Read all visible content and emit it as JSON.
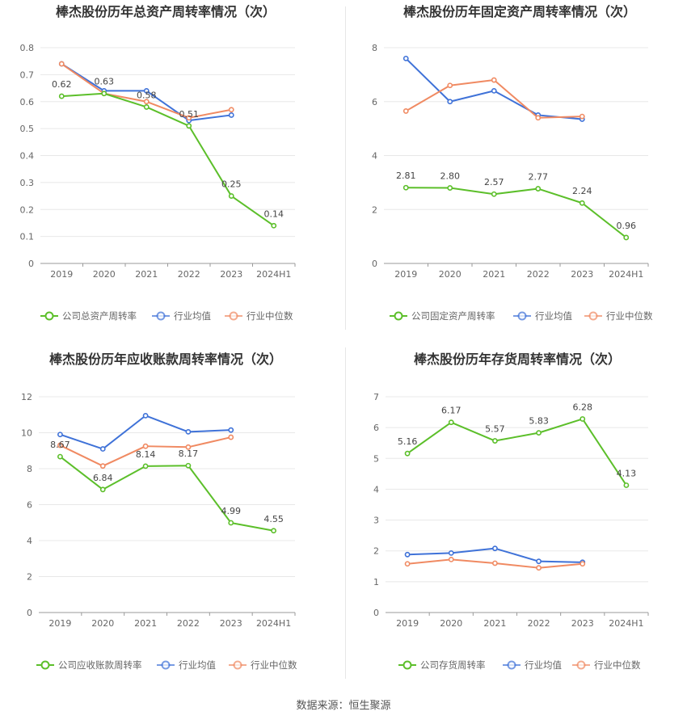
{
  "colors": {
    "company": "#5cbf2a",
    "avg": "#3f72d8",
    "median": "#f08a62",
    "grid": "#e8e8e8",
    "axis": "#9a9a9a",
    "title": "#333333",
    "label": "#666666"
  },
  "legend": {
    "avg": "行业均值",
    "median": "行业中位数"
  },
  "source": "数据来源：恒生聚源",
  "chart_data": [
    {
      "type": "line",
      "title": "棒杰股份历年总资产周转率情况（次）",
      "categories": [
        "2019",
        "2020",
        "2021",
        "2022",
        "2023",
        "2024H1"
      ],
      "yticks": [
        "0",
        "0.1",
        "0.2",
        "0.3",
        "0.4",
        "0.5",
        "0.6",
        "0.7",
        "0.8"
      ],
      "ylim": [
        0,
        0.8
      ],
      "grid": true,
      "legend_position": "bottom",
      "series": [
        {
          "name": "公司总资产周转率",
          "key": "company",
          "values": [
            0.62,
            0.63,
            0.58,
            0.51,
            0.25,
            0.14
          ],
          "labels": [
            "0.62",
            "0.63",
            "0.58",
            "0.51",
            "0.25",
            "0.14"
          ]
        },
        {
          "name": "行业均值",
          "key": "avg",
          "values": [
            0.74,
            0.64,
            0.64,
            0.53,
            0.55,
            null
          ]
        },
        {
          "name": "行业中位数",
          "key": "median",
          "values": [
            0.74,
            0.63,
            0.6,
            0.54,
            0.57,
            null
          ]
        }
      ]
    },
    {
      "type": "line",
      "title": "棒杰股份历年固定资产周转率情况（次）",
      "categories": [
        "2019",
        "2020",
        "2021",
        "2022",
        "2023",
        "2024H1"
      ],
      "yticks": [
        "0",
        "2",
        "4",
        "6",
        "8"
      ],
      "ylim": [
        0,
        8
      ],
      "grid": true,
      "legend_position": "bottom",
      "series": [
        {
          "name": "公司固定资产周转率",
          "key": "company",
          "values": [
            2.81,
            2.8,
            2.57,
            2.77,
            2.24,
            0.96
          ],
          "labels": [
            "2.81",
            "2.80",
            "2.57",
            "2.77",
            "2.24",
            "0.96"
          ]
        },
        {
          "name": "行业均值",
          "key": "avg",
          "values": [
            7.6,
            6.0,
            6.4,
            5.5,
            5.35,
            null
          ]
        },
        {
          "name": "行业中位数",
          "key": "median",
          "values": [
            5.65,
            6.6,
            6.8,
            5.4,
            5.45,
            null
          ]
        }
      ]
    },
    {
      "type": "line",
      "title": "棒杰股份历年应收账款周转率情况（次）",
      "categories": [
        "2019",
        "2020",
        "2021",
        "2022",
        "2023",
        "2024H1"
      ],
      "yticks": [
        "0",
        "2",
        "4",
        "6",
        "8",
        "10",
        "12"
      ],
      "ylim": [
        0,
        12
      ],
      "grid": true,
      "legend_position": "bottom",
      "series": [
        {
          "name": "公司应收账款周转率",
          "key": "company",
          "values": [
            8.67,
            6.84,
            8.14,
            8.17,
            4.99,
            4.55
          ],
          "labels": [
            "8.67",
            "6.84",
            "8.14",
            "8.17",
            "4.99",
            "4.55"
          ]
        },
        {
          "name": "行业均值",
          "key": "avg",
          "values": [
            9.9,
            9.1,
            10.95,
            10.05,
            10.15,
            null
          ]
        },
        {
          "name": "行业中位数",
          "key": "median",
          "values": [
            9.3,
            8.15,
            9.25,
            9.2,
            9.75,
            null
          ]
        }
      ]
    },
    {
      "type": "line",
      "title": "棒杰股份历年存货周转率情况（次）",
      "categories": [
        "2019",
        "2020",
        "2021",
        "2022",
        "2023",
        "2024H1"
      ],
      "yticks": [
        "0",
        "1",
        "2",
        "3",
        "4",
        "5",
        "6",
        "7"
      ],
      "ylim": [
        0,
        7
      ],
      "grid": true,
      "legend_position": "bottom",
      "series": [
        {
          "name": "公司存货周转率",
          "key": "company",
          "values": [
            5.16,
            6.17,
            5.57,
            5.83,
            6.28,
            4.13
          ],
          "labels": [
            "5.16",
            "6.17",
            "5.57",
            "5.83",
            "6.28",
            "4.13"
          ]
        },
        {
          "name": "行业均值",
          "key": "avg",
          "values": [
            1.88,
            1.93,
            2.08,
            1.66,
            1.63,
            null
          ]
        },
        {
          "name": "行业中位数",
          "key": "median",
          "values": [
            1.58,
            1.72,
            1.6,
            1.45,
            1.58,
            null
          ]
        }
      ]
    }
  ]
}
